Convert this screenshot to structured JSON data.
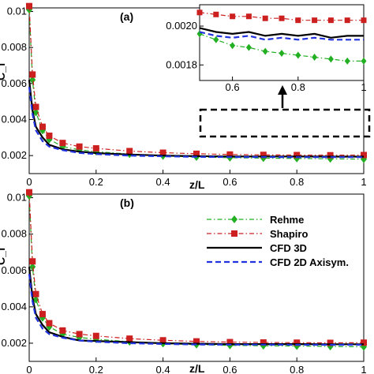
{
  "chart_data": [
    {
      "type": "line",
      "panel_label": "(a)",
      "xlabel": "z/L",
      "ylabel": "C_f",
      "x_ticks": [
        "0",
        "0.2",
        "0.4",
        "0.6",
        "0.8",
        "1"
      ],
      "y_ticks": [
        "0.002",
        "0.004",
        "0.006",
        "0.008",
        "0.01"
      ],
      "xlim": [
        0,
        1
      ],
      "ylim": [
        0.001,
        0.0102
      ],
      "series": [
        {
          "name": "Rehme",
          "color": "#22b022",
          "marker": "diamond",
          "dash": "dashdot",
          "x": [
            0,
            0.01,
            0.02,
            0.04,
            0.06,
            0.1,
            0.15,
            0.2,
            0.3,
            0.4,
            0.5,
            0.6,
            0.7,
            0.8,
            0.9,
            1.0
          ],
          "y": [
            0.0101,
            0.0062,
            0.0044,
            0.0034,
            0.0029,
            0.0025,
            0.00232,
            0.00222,
            0.00208,
            0.00198,
            0.00192,
            0.00188,
            0.00186,
            0.00184,
            0.00182,
            0.0018
          ]
        },
        {
          "name": "Shapiro",
          "color": "#cc1f1f",
          "marker": "square",
          "dash": "dashdot",
          "x": [
            0,
            0.01,
            0.02,
            0.04,
            0.06,
            0.1,
            0.15,
            0.2,
            0.3,
            0.4,
            0.5,
            0.6,
            0.7,
            0.8,
            0.9,
            1.0
          ],
          "y": [
            0.0103,
            0.0065,
            0.0047,
            0.0036,
            0.0031,
            0.0027,
            0.0025,
            0.0024,
            0.00225,
            0.00216,
            0.0021,
            0.00206,
            0.00204,
            0.00203,
            0.00202,
            0.00203
          ]
        },
        {
          "name": "CFD 3D",
          "color": "#000000",
          "marker": "none",
          "dash": "solid",
          "x": [
            0,
            0.01,
            0.02,
            0.04,
            0.06,
            0.1,
            0.15,
            0.2,
            0.3,
            0.4,
            0.5,
            0.6,
            0.7,
            0.8,
            0.9,
            1.0
          ],
          "y": [
            0.0062,
            0.0045,
            0.0036,
            0.003,
            0.0026,
            0.00235,
            0.00222,
            0.00214,
            0.00206,
            0.002,
            0.00197,
            0.00195,
            0.00195,
            0.00195,
            0.00194,
            0.00194
          ]
        },
        {
          "name": "CFD 2D Axisym.",
          "color": "#2233dd",
          "marker": "none",
          "dash": "dashed",
          "x": [
            0,
            0.01,
            0.02,
            0.04,
            0.06,
            0.1,
            0.15,
            0.2,
            0.3,
            0.4,
            0.5,
            0.6,
            0.7,
            0.8,
            0.9,
            1.0
          ],
          "y": [
            0.0058,
            0.0043,
            0.0034,
            0.0028,
            0.0025,
            0.0023,
            0.00215,
            0.00208,
            0.002,
            0.00196,
            0.00193,
            0.00192,
            0.00192,
            0.00191,
            0.00191,
            0.00191
          ]
        }
      ],
      "inset": {
        "x_ticks": [
          "0.6",
          "0.8",
          "1"
        ],
        "y_ticks": [
          "0.0018",
          "0.0020"
        ],
        "xlim": [
          0.5,
          1.0
        ],
        "ylim": [
          0.00172,
          0.00211
        ],
        "series": [
          {
            "name": "Rehme",
            "color": "#22b022",
            "marker": "diamond",
            "dash": "dashdot",
            "x": [
              0.5,
              0.55,
              0.6,
              0.65,
              0.7,
              0.75,
              0.8,
              0.85,
              0.9,
              0.95,
              1.0
            ],
            "y": [
              0.00196,
              0.00193,
              0.0019,
              0.00189,
              0.00187,
              0.00186,
              0.00185,
              0.00184,
              0.00183,
              0.00182,
              0.00182
            ]
          },
          {
            "name": "Shapiro",
            "color": "#cc1f1f",
            "marker": "square",
            "dash": "dashdot",
            "x": [
              0.5,
              0.55,
              0.6,
              0.65,
              0.7,
              0.75,
              0.8,
              0.85,
              0.9,
              0.95,
              1.0
            ],
            "y": [
              0.00207,
              0.00206,
              0.00205,
              0.00205,
              0.00204,
              0.00204,
              0.00203,
              0.00203,
              0.00203,
              0.00203,
              0.00203
            ]
          },
          {
            "name": "CFD 3D",
            "color": "#000000",
            "marker": "none",
            "dash": "solid",
            "x": [
              0.5,
              0.55,
              0.6,
              0.65,
              0.7,
              0.75,
              0.8,
              0.85,
              0.9,
              0.95,
              1.0
            ],
            "y": [
              0.00199,
              0.00197,
              0.00196,
              0.00197,
              0.00195,
              0.00196,
              0.00195,
              0.00196,
              0.00194,
              0.00195,
              0.00195
            ]
          },
          {
            "name": "CFD 2D Axisym.",
            "color": "#2233dd",
            "marker": "none",
            "dash": "dashed",
            "x": [
              0.5,
              0.55,
              0.6,
              0.65,
              0.7,
              0.75,
              0.8,
              0.85,
              0.9,
              0.95,
              1.0
            ],
            "y": [
              0.00197,
              0.00195,
              0.00194,
              0.00195,
              0.00193,
              0.00194,
              0.00193,
              0.00194,
              0.00193,
              0.00193,
              0.00193
            ]
          }
        ]
      }
    },
    {
      "type": "line",
      "panel_label": "(b)",
      "xlabel": "z/L",
      "ylabel": "C_f",
      "x_ticks": [
        "0",
        "0.2",
        "0.4",
        "0.6",
        "0.8",
        "1"
      ],
      "y_ticks": [
        "0.002",
        "0.004",
        "0.006",
        "0.008",
        "0.01"
      ],
      "xlim": [
        0,
        1
      ],
      "ylim": [
        0.001,
        0.0102
      ],
      "legend": [
        "Rehme",
        "Shapiro",
        "CFD 3D",
        "CFD 2D Axisym."
      ],
      "series": [
        {
          "name": "Rehme",
          "color": "#22b022",
          "marker": "diamond",
          "dash": "dashdot",
          "x": [
            0,
            0.01,
            0.02,
            0.04,
            0.06,
            0.1,
            0.15,
            0.2,
            0.3,
            0.4,
            0.5,
            0.6,
            0.7,
            0.8,
            0.9,
            1.0
          ],
          "y": [
            0.0101,
            0.0062,
            0.0044,
            0.0034,
            0.0029,
            0.0025,
            0.00232,
            0.00222,
            0.00208,
            0.00198,
            0.00192,
            0.00188,
            0.00186,
            0.00184,
            0.00182,
            0.0018
          ]
        },
        {
          "name": "Shapiro",
          "color": "#cc1f1f",
          "marker": "square",
          "dash": "dashdot",
          "x": [
            0,
            0.01,
            0.02,
            0.04,
            0.06,
            0.1,
            0.15,
            0.2,
            0.3,
            0.4,
            0.5,
            0.6,
            0.7,
            0.8,
            0.9,
            1.0
          ],
          "y": [
            0.0103,
            0.0065,
            0.0047,
            0.0036,
            0.0031,
            0.0027,
            0.0025,
            0.0024,
            0.00225,
            0.00216,
            0.0021,
            0.00206,
            0.00204,
            0.00203,
            0.00202,
            0.00203
          ]
        },
        {
          "name": "CFD 3D",
          "color": "#000000",
          "marker": "none",
          "dash": "solid",
          "x": [
            0,
            0.01,
            0.02,
            0.04,
            0.06,
            0.1,
            0.15,
            0.2,
            0.3,
            0.4,
            0.5,
            0.6,
            0.7,
            0.8,
            0.9,
            1.0
          ],
          "y": [
            0.0062,
            0.0045,
            0.0036,
            0.003,
            0.0026,
            0.00235,
            0.00215,
            0.00212,
            0.00206,
            0.002,
            0.00197,
            0.00195,
            0.00195,
            0.00195,
            0.00194,
            0.00194
          ]
        },
        {
          "name": "CFD 2D Axisym.",
          "color": "#2233dd",
          "marker": "none",
          "dash": "dashed",
          "x": [
            0,
            0.01,
            0.02,
            0.04,
            0.06,
            0.1,
            0.15,
            0.2,
            0.3,
            0.4,
            0.5,
            0.6,
            0.7,
            0.8,
            0.9,
            1.0
          ],
          "y": [
            0.0058,
            0.0043,
            0.0034,
            0.0028,
            0.0025,
            0.0023,
            0.00215,
            0.00208,
            0.002,
            0.00196,
            0.00193,
            0.00192,
            0.00192,
            0.00191,
            0.00191,
            0.00191
          ]
        }
      ]
    }
  ]
}
